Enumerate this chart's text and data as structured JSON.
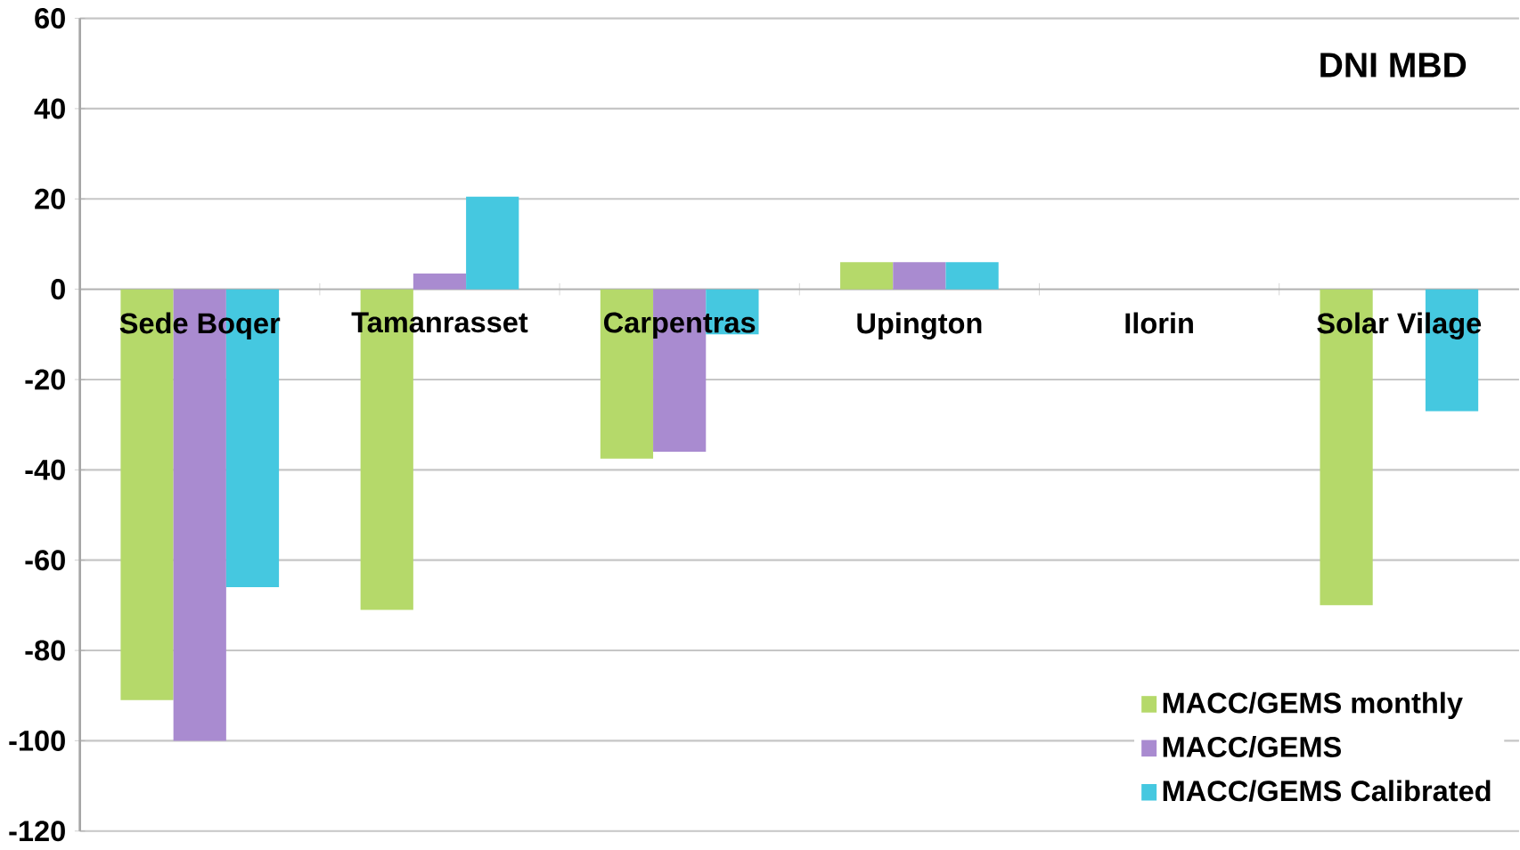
{
  "chart_data": {
    "type": "bar",
    "title": "DNI MBD",
    "categories": [
      "Sede Boqer",
      "Tamanrasset",
      "Carpentras",
      "Upington",
      "Ilorin",
      "Solar Vilage"
    ],
    "series": [
      {
        "name": "MACC/GEMS monthly",
        "color": "#b5d96a",
        "values": [
          -91,
          -71,
          -37.5,
          6,
          null,
          -70
        ]
      },
      {
        "name": "MACC/GEMS",
        "color": "#a98bd0",
        "values": [
          -100,
          3.5,
          -36,
          6,
          null,
          null
        ]
      },
      {
        "name": "MACC/GEMS Calibrated",
        "color": "#45c8e0",
        "values": [
          -66,
          20.5,
          -10,
          6,
          null,
          -27
        ]
      }
    ],
    "ylim": [
      -120,
      60
    ],
    "yticks": [
      -120,
      -100,
      -80,
      -60,
      -40,
      -20,
      0,
      20,
      40,
      60
    ],
    "grid": "y",
    "legend": "bottom right"
  }
}
